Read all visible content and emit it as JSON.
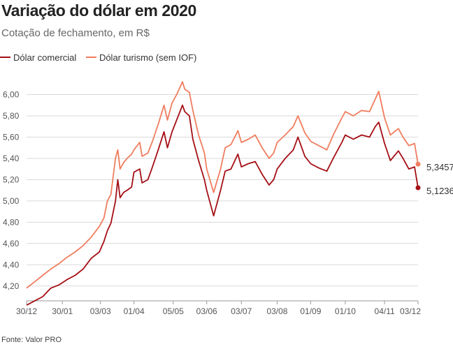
{
  "title": "Variação do dólar em 2020",
  "subtitle": "Cotação de fechamento, em R$",
  "source": "Fonte: Valor PRO",
  "chart_data": {
    "type": "line",
    "title": "Variação do dólar em 2020",
    "subtitle": "Cotação de fechamento, em R$",
    "xlabel": "",
    "ylabel": "",
    "ylim": [
      4.1,
      6.2
    ],
    "yticks": [
      4.2,
      4.4,
      4.6,
      4.8,
      5.0,
      5.2,
      5.4,
      5.6,
      5.8,
      6.0
    ],
    "ytick_labels": [
      "4,20",
      "4,40",
      "4,60",
      "4,80",
      "5,00",
      "5,20",
      "5,40",
      "5,60",
      "5,80",
      "6,00"
    ],
    "x_range": [
      "2019-12-30",
      "2020-12-03"
    ],
    "xticks": [
      "2019-12-30",
      "2020-01-30",
      "2020-03-03",
      "2020-04-01",
      "2020-05-05",
      "2020-06-03",
      "2020-07-03",
      "2020-08-03",
      "2020-09-01",
      "2020-10-01",
      "2020-11-04",
      "2020-12-03"
    ],
    "xtick_labels": [
      "30/12",
      "30/01",
      "03/03",
      "01/04",
      "05/05",
      "03/06",
      "03/07",
      "03/08",
      "01/09",
      "01/10",
      "04/11",
      "03/12"
    ],
    "grid": "horizontal",
    "legend_position": "top-left",
    "series": [
      {
        "name": "Dólar comercial",
        "color": "#a50f15",
        "last_label": "5,1236",
        "points": [
          [
            "2019-12-30",
            4.02
          ],
          [
            "2020-01-06",
            4.06
          ],
          [
            "2020-01-13",
            4.1
          ],
          [
            "2020-01-20",
            4.18
          ],
          [
            "2020-01-27",
            4.21
          ],
          [
            "2020-02-03",
            4.26
          ],
          [
            "2020-02-10",
            4.3
          ],
          [
            "2020-02-17",
            4.36
          ],
          [
            "2020-02-24",
            4.46
          ],
          [
            "2020-03-02",
            4.52
          ],
          [
            "2020-03-06",
            4.62
          ],
          [
            "2020-03-09",
            4.72
          ],
          [
            "2020-03-12",
            4.79
          ],
          [
            "2020-03-16",
            5.0
          ],
          [
            "2020-03-18",
            5.2
          ],
          [
            "2020-03-20",
            5.03
          ],
          [
            "2020-03-23",
            5.08
          ],
          [
            "2020-03-26",
            5.1
          ],
          [
            "2020-03-30",
            5.13
          ],
          [
            "2020-04-01",
            5.27
          ],
          [
            "2020-04-06",
            5.3
          ],
          [
            "2020-04-08",
            5.17
          ],
          [
            "2020-04-13",
            5.2
          ],
          [
            "2020-04-17",
            5.32
          ],
          [
            "2020-04-22",
            5.48
          ],
          [
            "2020-04-27",
            5.65
          ],
          [
            "2020-04-30",
            5.5
          ],
          [
            "2020-05-04",
            5.65
          ],
          [
            "2020-05-08",
            5.76
          ],
          [
            "2020-05-13",
            5.9
          ],
          [
            "2020-05-15",
            5.84
          ],
          [
            "2020-05-19",
            5.8
          ],
          [
            "2020-05-22",
            5.58
          ],
          [
            "2020-05-27",
            5.38
          ],
          [
            "2020-06-01",
            5.2
          ],
          [
            "2020-06-03",
            5.1
          ],
          [
            "2020-06-09",
            4.86
          ],
          [
            "2020-06-15",
            5.1
          ],
          [
            "2020-06-19",
            5.28
          ],
          [
            "2020-06-24",
            5.3
          ],
          [
            "2020-06-30",
            5.44
          ],
          [
            "2020-07-03",
            5.32
          ],
          [
            "2020-07-09",
            5.35
          ],
          [
            "2020-07-15",
            5.37
          ],
          [
            "2020-07-21",
            5.25
          ],
          [
            "2020-07-27",
            5.15
          ],
          [
            "2020-07-31",
            5.2
          ],
          [
            "2020-08-03",
            5.3
          ],
          [
            "2020-08-10",
            5.4
          ],
          [
            "2020-08-17",
            5.48
          ],
          [
            "2020-08-21",
            5.6
          ],
          [
            "2020-08-27",
            5.42
          ],
          [
            "2020-09-01",
            5.35
          ],
          [
            "2020-09-08",
            5.31
          ],
          [
            "2020-09-15",
            5.28
          ],
          [
            "2020-09-21",
            5.41
          ],
          [
            "2020-09-28",
            5.55
          ],
          [
            "2020-10-01",
            5.62
          ],
          [
            "2020-10-08",
            5.58
          ],
          [
            "2020-10-15",
            5.62
          ],
          [
            "2020-10-22",
            5.6
          ],
          [
            "2020-10-27",
            5.7
          ],
          [
            "2020-10-30",
            5.74
          ],
          [
            "2020-11-04",
            5.54
          ],
          [
            "2020-11-09",
            5.38
          ],
          [
            "2020-11-16",
            5.47
          ],
          [
            "2020-11-20",
            5.4
          ],
          [
            "2020-11-25",
            5.3
          ],
          [
            "2020-11-30",
            5.32
          ],
          [
            "2020-12-03",
            5.1236
          ]
        ]
      },
      {
        "name": "Dólar turismo (sem IOF)",
        "color": "#f07d5e",
        "last_label": "5,3457",
        "points": [
          [
            "2019-12-30",
            4.18
          ],
          [
            "2020-01-06",
            4.24
          ],
          [
            "2020-01-13",
            4.3
          ],
          [
            "2020-01-20",
            4.36
          ],
          [
            "2020-01-27",
            4.41
          ],
          [
            "2020-02-03",
            4.47
          ],
          [
            "2020-02-10",
            4.52
          ],
          [
            "2020-02-17",
            4.58
          ],
          [
            "2020-02-24",
            4.66
          ],
          [
            "2020-03-02",
            4.76
          ],
          [
            "2020-03-06",
            4.84
          ],
          [
            "2020-03-09",
            5.0
          ],
          [
            "2020-03-12",
            5.06
          ],
          [
            "2020-03-16",
            5.4
          ],
          [
            "2020-03-18",
            5.48
          ],
          [
            "2020-03-20",
            5.3
          ],
          [
            "2020-03-23",
            5.36
          ],
          [
            "2020-03-26",
            5.4
          ],
          [
            "2020-03-30",
            5.44
          ],
          [
            "2020-04-01",
            5.48
          ],
          [
            "2020-04-06",
            5.55
          ],
          [
            "2020-04-08",
            5.42
          ],
          [
            "2020-04-13",
            5.45
          ],
          [
            "2020-04-17",
            5.56
          ],
          [
            "2020-04-22",
            5.72
          ],
          [
            "2020-04-27",
            5.9
          ],
          [
            "2020-04-30",
            5.76
          ],
          [
            "2020-05-04",
            5.92
          ],
          [
            "2020-05-08",
            6.0
          ],
          [
            "2020-05-13",
            6.12
          ],
          [
            "2020-05-15",
            6.05
          ],
          [
            "2020-05-19",
            6.02
          ],
          [
            "2020-05-22",
            5.85
          ],
          [
            "2020-05-27",
            5.62
          ],
          [
            "2020-06-01",
            5.45
          ],
          [
            "2020-06-03",
            5.3
          ],
          [
            "2020-06-09",
            5.08
          ],
          [
            "2020-06-15",
            5.3
          ],
          [
            "2020-06-19",
            5.5
          ],
          [
            "2020-06-24",
            5.53
          ],
          [
            "2020-06-30",
            5.66
          ],
          [
            "2020-07-03",
            5.55
          ],
          [
            "2020-07-09",
            5.58
          ],
          [
            "2020-07-15",
            5.62
          ],
          [
            "2020-07-21",
            5.5
          ],
          [
            "2020-07-27",
            5.4
          ],
          [
            "2020-07-31",
            5.45
          ],
          [
            "2020-08-03",
            5.55
          ],
          [
            "2020-08-10",
            5.62
          ],
          [
            "2020-08-17",
            5.7
          ],
          [
            "2020-08-21",
            5.8
          ],
          [
            "2020-08-27",
            5.64
          ],
          [
            "2020-09-01",
            5.56
          ],
          [
            "2020-09-08",
            5.52
          ],
          [
            "2020-09-15",
            5.48
          ],
          [
            "2020-09-21",
            5.63
          ],
          [
            "2020-09-28",
            5.78
          ],
          [
            "2020-10-01",
            5.84
          ],
          [
            "2020-10-08",
            5.8
          ],
          [
            "2020-10-15",
            5.85
          ],
          [
            "2020-10-22",
            5.84
          ],
          [
            "2020-10-27",
            5.96
          ],
          [
            "2020-10-30",
            6.03
          ],
          [
            "2020-11-04",
            5.78
          ],
          [
            "2020-11-09",
            5.62
          ],
          [
            "2020-11-16",
            5.68
          ],
          [
            "2020-11-20",
            5.6
          ],
          [
            "2020-11-25",
            5.52
          ],
          [
            "2020-11-30",
            5.54
          ],
          [
            "2020-12-03",
            5.3457
          ]
        ]
      }
    ]
  }
}
